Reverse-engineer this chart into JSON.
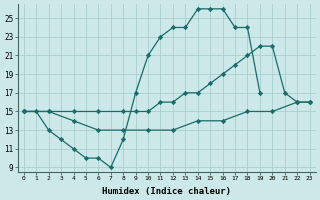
{
  "xlabel": "Humidex (Indice chaleur)",
  "bg_color": "#cce8e8",
  "grid_color": "#aacece",
  "line_color": "#1a6b6b",
  "xlim": [
    -0.5,
    23.5
  ],
  "ylim": [
    8.5,
    26.5
  ],
  "xticks": [
    0,
    1,
    2,
    3,
    4,
    5,
    6,
    7,
    8,
    9,
    10,
    11,
    12,
    13,
    14,
    15,
    16,
    17,
    18,
    19,
    20,
    21,
    22,
    23
  ],
  "yticks": [
    9,
    11,
    13,
    15,
    17,
    19,
    21,
    23,
    25
  ],
  "line1_x": [
    0,
    1,
    2,
    3,
    4,
    5,
    6,
    7,
    8,
    9,
    10,
    11,
    12,
    13,
    14,
    15,
    16,
    17,
    18,
    19
  ],
  "line1_y": [
    15,
    15,
    13,
    12,
    11,
    10,
    10,
    9,
    12,
    17,
    21,
    23,
    24,
    24,
    26,
    26,
    26,
    24,
    24,
    17
  ],
  "line2_x": [
    0,
    2,
    4,
    6,
    8,
    9,
    10,
    11,
    12,
    13,
    14,
    15,
    16,
    17,
    18,
    19,
    20,
    21,
    22,
    23
  ],
  "line2_y": [
    15,
    15,
    15,
    15,
    15,
    15,
    15,
    16,
    16,
    17,
    17,
    18,
    19,
    20,
    21,
    22,
    22,
    17,
    16,
    16
  ],
  "line3_x": [
    0,
    2,
    4,
    6,
    8,
    10,
    12,
    14,
    16,
    18,
    20,
    22,
    23
  ],
  "line3_y": [
    15,
    15,
    14,
    13,
    13,
    13,
    13,
    14,
    14,
    15,
    15,
    16,
    16
  ]
}
